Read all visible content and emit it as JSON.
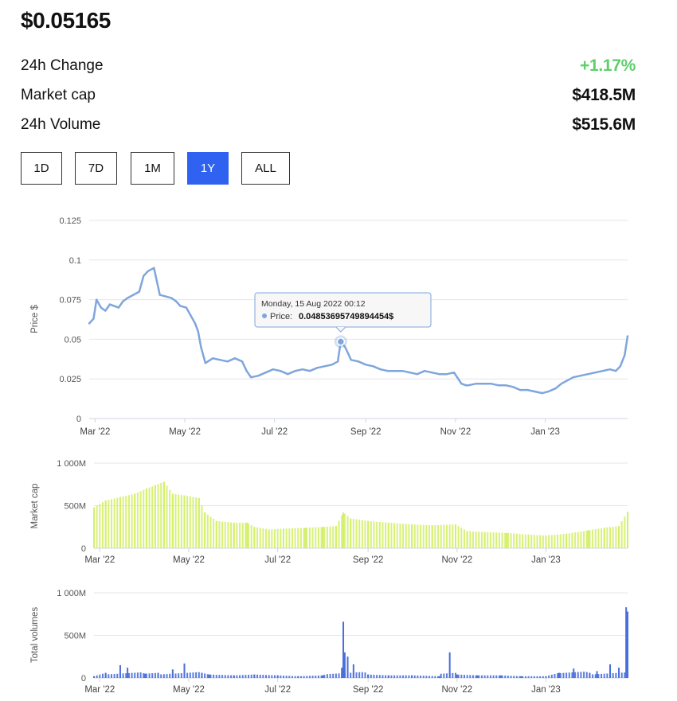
{
  "header": {
    "price": "$0.05165",
    "stats": [
      {
        "label": "24h Change",
        "value": "+1.17%",
        "trend": "up"
      },
      {
        "label": "Market cap",
        "value": "$418.5M",
        "trend": "neutral"
      },
      {
        "label": "24h Volume",
        "value": "$515.6M",
        "trend": "neutral"
      }
    ]
  },
  "range_buttons": [
    {
      "label": "1D",
      "active": false
    },
    {
      "label": "7D",
      "active": false
    },
    {
      "label": "1M",
      "active": false
    },
    {
      "label": "1Y",
      "active": true
    },
    {
      "label": "ALL",
      "active": false
    }
  ],
  "colors": {
    "accent": "#2f62f0",
    "positive": "#5ccf6b",
    "price_line": "#7fa6dc",
    "market_cap_bars": "#d4f06a",
    "volume_bars": "#4a6fdc",
    "grid": "#e6e6e6"
  },
  "tooltip": {
    "date": "Monday, 15 Aug 2022 00:12",
    "label": "Price:",
    "value": "0.04853695749894454$"
  },
  "chart_data": [
    {
      "type": "line",
      "ylabel": "Price $",
      "ylim": [
        0,
        0.125
      ],
      "yticks": [
        0,
        0.025,
        0.05,
        0.075,
        0.1,
        0.125
      ],
      "ytick_labels": [
        "0",
        "0.025",
        "0.05",
        "0.075",
        "0.1",
        "0.125"
      ],
      "xlim": [
        "2022-02-25",
        "2023-02-26"
      ],
      "xtick_labels": [
        "Mar '22",
        "May '22",
        "Jul '22",
        "Sep '22",
        "Nov '22",
        "Jan '23"
      ],
      "xtick_dates": [
        "2022-03-01",
        "2022-05-01",
        "2022-07-01",
        "2022-09-01",
        "2022-11-01",
        "2023-01-01"
      ],
      "grid": true,
      "series": [
        {
          "x": [
            "2022-02-25",
            "2022-02-28",
            "2022-03-02",
            "2022-03-05",
            "2022-03-08",
            "2022-03-11",
            "2022-03-14",
            "2022-03-17",
            "2022-03-20",
            "2022-03-23",
            "2022-03-27",
            "2022-03-31",
            "2022-04-03",
            "2022-04-06",
            "2022-04-10",
            "2022-04-14",
            "2022-04-18",
            "2022-04-22",
            "2022-04-25",
            "2022-04-28",
            "2022-05-02",
            "2022-05-05",
            "2022-05-08",
            "2022-05-10",
            "2022-05-12",
            "2022-05-15",
            "2022-05-20",
            "2022-05-25",
            "2022-05-30",
            "2022-06-04",
            "2022-06-09",
            "2022-06-12",
            "2022-06-15",
            "2022-06-20",
            "2022-06-25",
            "2022-06-30",
            "2022-07-05",
            "2022-07-10",
            "2022-07-15",
            "2022-07-20",
            "2022-07-25",
            "2022-07-30",
            "2022-08-04",
            "2022-08-09",
            "2022-08-13",
            "2022-08-15",
            "2022-08-18",
            "2022-08-22",
            "2022-08-27",
            "2022-09-01",
            "2022-09-06",
            "2022-09-11",
            "2022-09-16",
            "2022-09-21",
            "2022-09-26",
            "2022-10-01",
            "2022-10-06",
            "2022-10-11",
            "2022-10-16",
            "2022-10-21",
            "2022-10-26",
            "2022-10-31",
            "2022-11-05",
            "2022-11-08",
            "2022-11-10",
            "2022-11-15",
            "2022-11-20",
            "2022-11-25",
            "2022-11-30",
            "2022-12-05",
            "2022-12-10",
            "2022-12-15",
            "2022-12-20",
            "2022-12-25",
            "2022-12-30",
            "2023-01-03",
            "2023-01-08",
            "2023-01-12",
            "2023-01-16",
            "2023-01-20",
            "2023-01-25",
            "2023-01-30",
            "2023-02-04",
            "2023-02-09",
            "2023-02-14",
            "2023-02-18",
            "2023-02-21",
            "2023-02-24",
            "2023-02-26"
          ],
          "y": [
            0.06,
            0.063,
            0.075,
            0.07,
            0.068,
            0.072,
            0.071,
            0.07,
            0.074,
            0.076,
            0.078,
            0.08,
            0.09,
            0.093,
            0.095,
            0.078,
            0.077,
            0.076,
            0.074,
            0.071,
            0.07,
            0.065,
            0.06,
            0.055,
            0.045,
            0.035,
            0.038,
            0.037,
            0.036,
            0.038,
            0.036,
            0.03,
            0.026,
            0.027,
            0.029,
            0.031,
            0.03,
            0.028,
            0.03,
            0.031,
            0.03,
            0.032,
            0.033,
            0.034,
            0.036,
            0.0485,
            0.045,
            0.037,
            0.036,
            0.034,
            0.033,
            0.031,
            0.03,
            0.03,
            0.03,
            0.029,
            0.028,
            0.03,
            0.029,
            0.028,
            0.028,
            0.029,
            0.022,
            0.021,
            0.021,
            0.022,
            0.022,
            0.022,
            0.021,
            0.021,
            0.02,
            0.018,
            0.018,
            0.017,
            0.016,
            0.017,
            0.019,
            0.022,
            0.024,
            0.026,
            0.027,
            0.028,
            0.029,
            0.03,
            0.031,
            0.03,
            0.033,
            0.04,
            0.052
          ]
        }
      ]
    },
    {
      "type": "bar",
      "ylabel": "Market cap",
      "ylim": [
        0,
        1000
      ],
      "yticks": [
        0,
        500,
        1000
      ],
      "ytick_labels": [
        "0",
        "500M",
        "1 000M"
      ],
      "units": "M",
      "xlim": [
        "2022-02-25",
        "2023-02-26"
      ],
      "xtick_labels": [
        "Mar '22",
        "May '22",
        "Jul '22",
        "Sep '22",
        "Nov '22",
        "Jan '23"
      ],
      "xtick_dates": [
        "2022-03-01",
        "2022-05-01",
        "2022-07-01",
        "2022-09-01",
        "2022-11-01",
        "2023-01-01"
      ],
      "grid": true,
      "series": [
        {
          "x": [
            "2022-02-25",
            "2022-03-05",
            "2022-03-15",
            "2022-03-25",
            "2022-04-02",
            "2022-04-08",
            "2022-04-14",
            "2022-04-20",
            "2022-04-28",
            "2022-05-08",
            "2022-05-12",
            "2022-05-20",
            "2022-06-01",
            "2022-06-10",
            "2022-06-15",
            "2022-06-25",
            "2022-07-05",
            "2022-07-20",
            "2022-08-01",
            "2022-08-10",
            "2022-08-15",
            "2022-08-20",
            "2022-09-01",
            "2022-09-15",
            "2022-10-01",
            "2022-10-15",
            "2022-10-31",
            "2022-11-08",
            "2022-11-20",
            "2022-12-05",
            "2022-12-20",
            "2023-01-01",
            "2023-01-15",
            "2023-01-30",
            "2023-02-10",
            "2023-02-20",
            "2023-02-26"
          ],
          "y": [
            480,
            560,
            600,
            640,
            700,
            740,
            780,
            640,
            620,
            590,
            420,
            320,
            300,
            300,
            250,
            220,
            230,
            240,
            250,
            260,
            420,
            350,
            320,
            300,
            280,
            270,
            280,
            200,
            190,
            180,
            160,
            150,
            170,
            210,
            240,
            260,
            430
          ]
        }
      ]
    },
    {
      "type": "bar",
      "ylabel": "Total volumes",
      "ylim": [
        0,
        1000
      ],
      "yticks": [
        0,
        500,
        1000
      ],
      "ytick_labels": [
        "0",
        "500M",
        "1 000M"
      ],
      "units": "M",
      "xlim": [
        "2022-02-25",
        "2023-02-26"
      ],
      "xtick_labels": [
        "Mar '22",
        "May '22",
        "Jul '22",
        "Sep '22",
        "Nov '22",
        "Jan '23"
      ],
      "xtick_dates": [
        "2022-03-01",
        "2022-05-01",
        "2022-07-01",
        "2022-09-01",
        "2022-11-01",
        "2023-01-01"
      ],
      "grid": true,
      "series": [
        {
          "x": [
            "2022-02-25",
            "2022-03-05",
            "2022-03-15",
            "2022-03-20",
            "2022-04-01",
            "2022-04-10",
            "2022-04-20",
            "2022-04-28",
            "2022-05-10",
            "2022-05-15",
            "2022-06-01",
            "2022-06-15",
            "2022-07-01",
            "2022-07-15",
            "2022-08-01",
            "2022-08-14",
            "2022-08-15",
            "2022-08-16",
            "2022-08-18",
            "2022-08-22",
            "2022-09-01",
            "2022-09-15",
            "2022-10-01",
            "2022-10-20",
            "2022-10-27",
            "2022-11-01",
            "2022-11-15",
            "2022-12-01",
            "2022-12-15",
            "2023-01-01",
            "2023-01-10",
            "2023-01-20",
            "2023-01-31",
            "2023-02-05",
            "2023-02-14",
            "2023-02-20",
            "2023-02-25",
            "2023-02-26"
          ],
          "y": [
            20,
            60,
            150,
            120,
            50,
            60,
            100,
            170,
            60,
            40,
            30,
            40,
            30,
            20,
            30,
            120,
            660,
            300,
            250,
            160,
            40,
            30,
            30,
            20,
            300,
            40,
            30,
            30,
            20,
            20,
            60,
            110,
            60,
            80,
            160,
            120,
            830,
            780
          ]
        }
      ]
    }
  ]
}
